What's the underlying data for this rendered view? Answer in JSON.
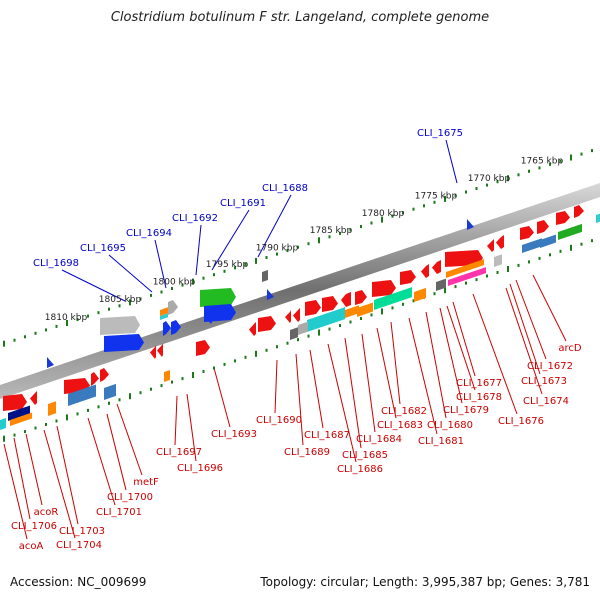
{
  "header": {
    "title": "Clostridium botulinum F str. Langeland, complete genome"
  },
  "footer": {
    "accession": "Accession: NC_009699",
    "stats": "Topology: circular; Length: 3,995,387 bp; Genes: 3,781"
  },
  "colors": {
    "backbone": "#8a8a8a",
    "ticks": "#1a7a1a",
    "label_top": "#0000cc",
    "label_bottom": "#cc0000",
    "strand_marker": "#1a3ad8"
  },
  "kbp_labels": [
    {
      "pos": 1765,
      "text": "1765 kbp"
    },
    {
      "pos": 1770,
      "text": "1770 kbp"
    },
    {
      "pos": 1775,
      "text": "1775 kbp"
    },
    {
      "pos": 1780,
      "text": "1780 kbp"
    },
    {
      "pos": 1785,
      "text": "1785 kbp"
    },
    {
      "pos": 1790,
      "text": "1790 kbp"
    },
    {
      "pos": 1795,
      "text": "1795 kbp"
    },
    {
      "pos": 1800,
      "text": "1800 kbp"
    },
    {
      "pos": 1805,
      "text": "1805 kbp"
    },
    {
      "pos": 1810,
      "text": "1810 kbp"
    }
  ],
  "top_gene_labels": [
    {
      "text": "CLI_1675"
    },
    {
      "text": "CLI_1688"
    },
    {
      "text": "CLI_1691"
    },
    {
      "text": "CLI_1692"
    },
    {
      "text": "CLI_1694"
    },
    {
      "text": "CLI_1695"
    },
    {
      "text": "CLI_1698"
    }
  ],
  "bottom_gene_labels": [
    {
      "text": "arcD"
    },
    {
      "text": "CLI_1672"
    },
    {
      "text": "CLI_1673"
    },
    {
      "text": "CLI_1674"
    },
    {
      "text": "CLI_1676"
    },
    {
      "text": "CLI_1677"
    },
    {
      "text": "CLI_1678"
    },
    {
      "text": "CLI_1679"
    },
    {
      "text": "CLI_1680"
    },
    {
      "text": "CLI_1681"
    },
    {
      "text": "CLI_1682"
    },
    {
      "text": "CLI_1683"
    },
    {
      "text": "CLI_1684"
    },
    {
      "text": "CLI_1685"
    },
    {
      "text": "CLI_1686"
    },
    {
      "text": "CLI_1687"
    },
    {
      "text": "CLI_1689"
    },
    {
      "text": "CLI_1690"
    },
    {
      "text": "CLI_1693"
    },
    {
      "text": "CLI_1696"
    },
    {
      "text": "CLI_1697"
    },
    {
      "text": "metF"
    },
    {
      "text": "CLI_1700"
    },
    {
      "text": "CLI_1701"
    },
    {
      "text": "CLI_1703"
    },
    {
      "text": "CLI_1704"
    },
    {
      "text": "acoR"
    },
    {
      "text": "CLI_1706"
    },
    {
      "text": "acoA"
    }
  ]
}
